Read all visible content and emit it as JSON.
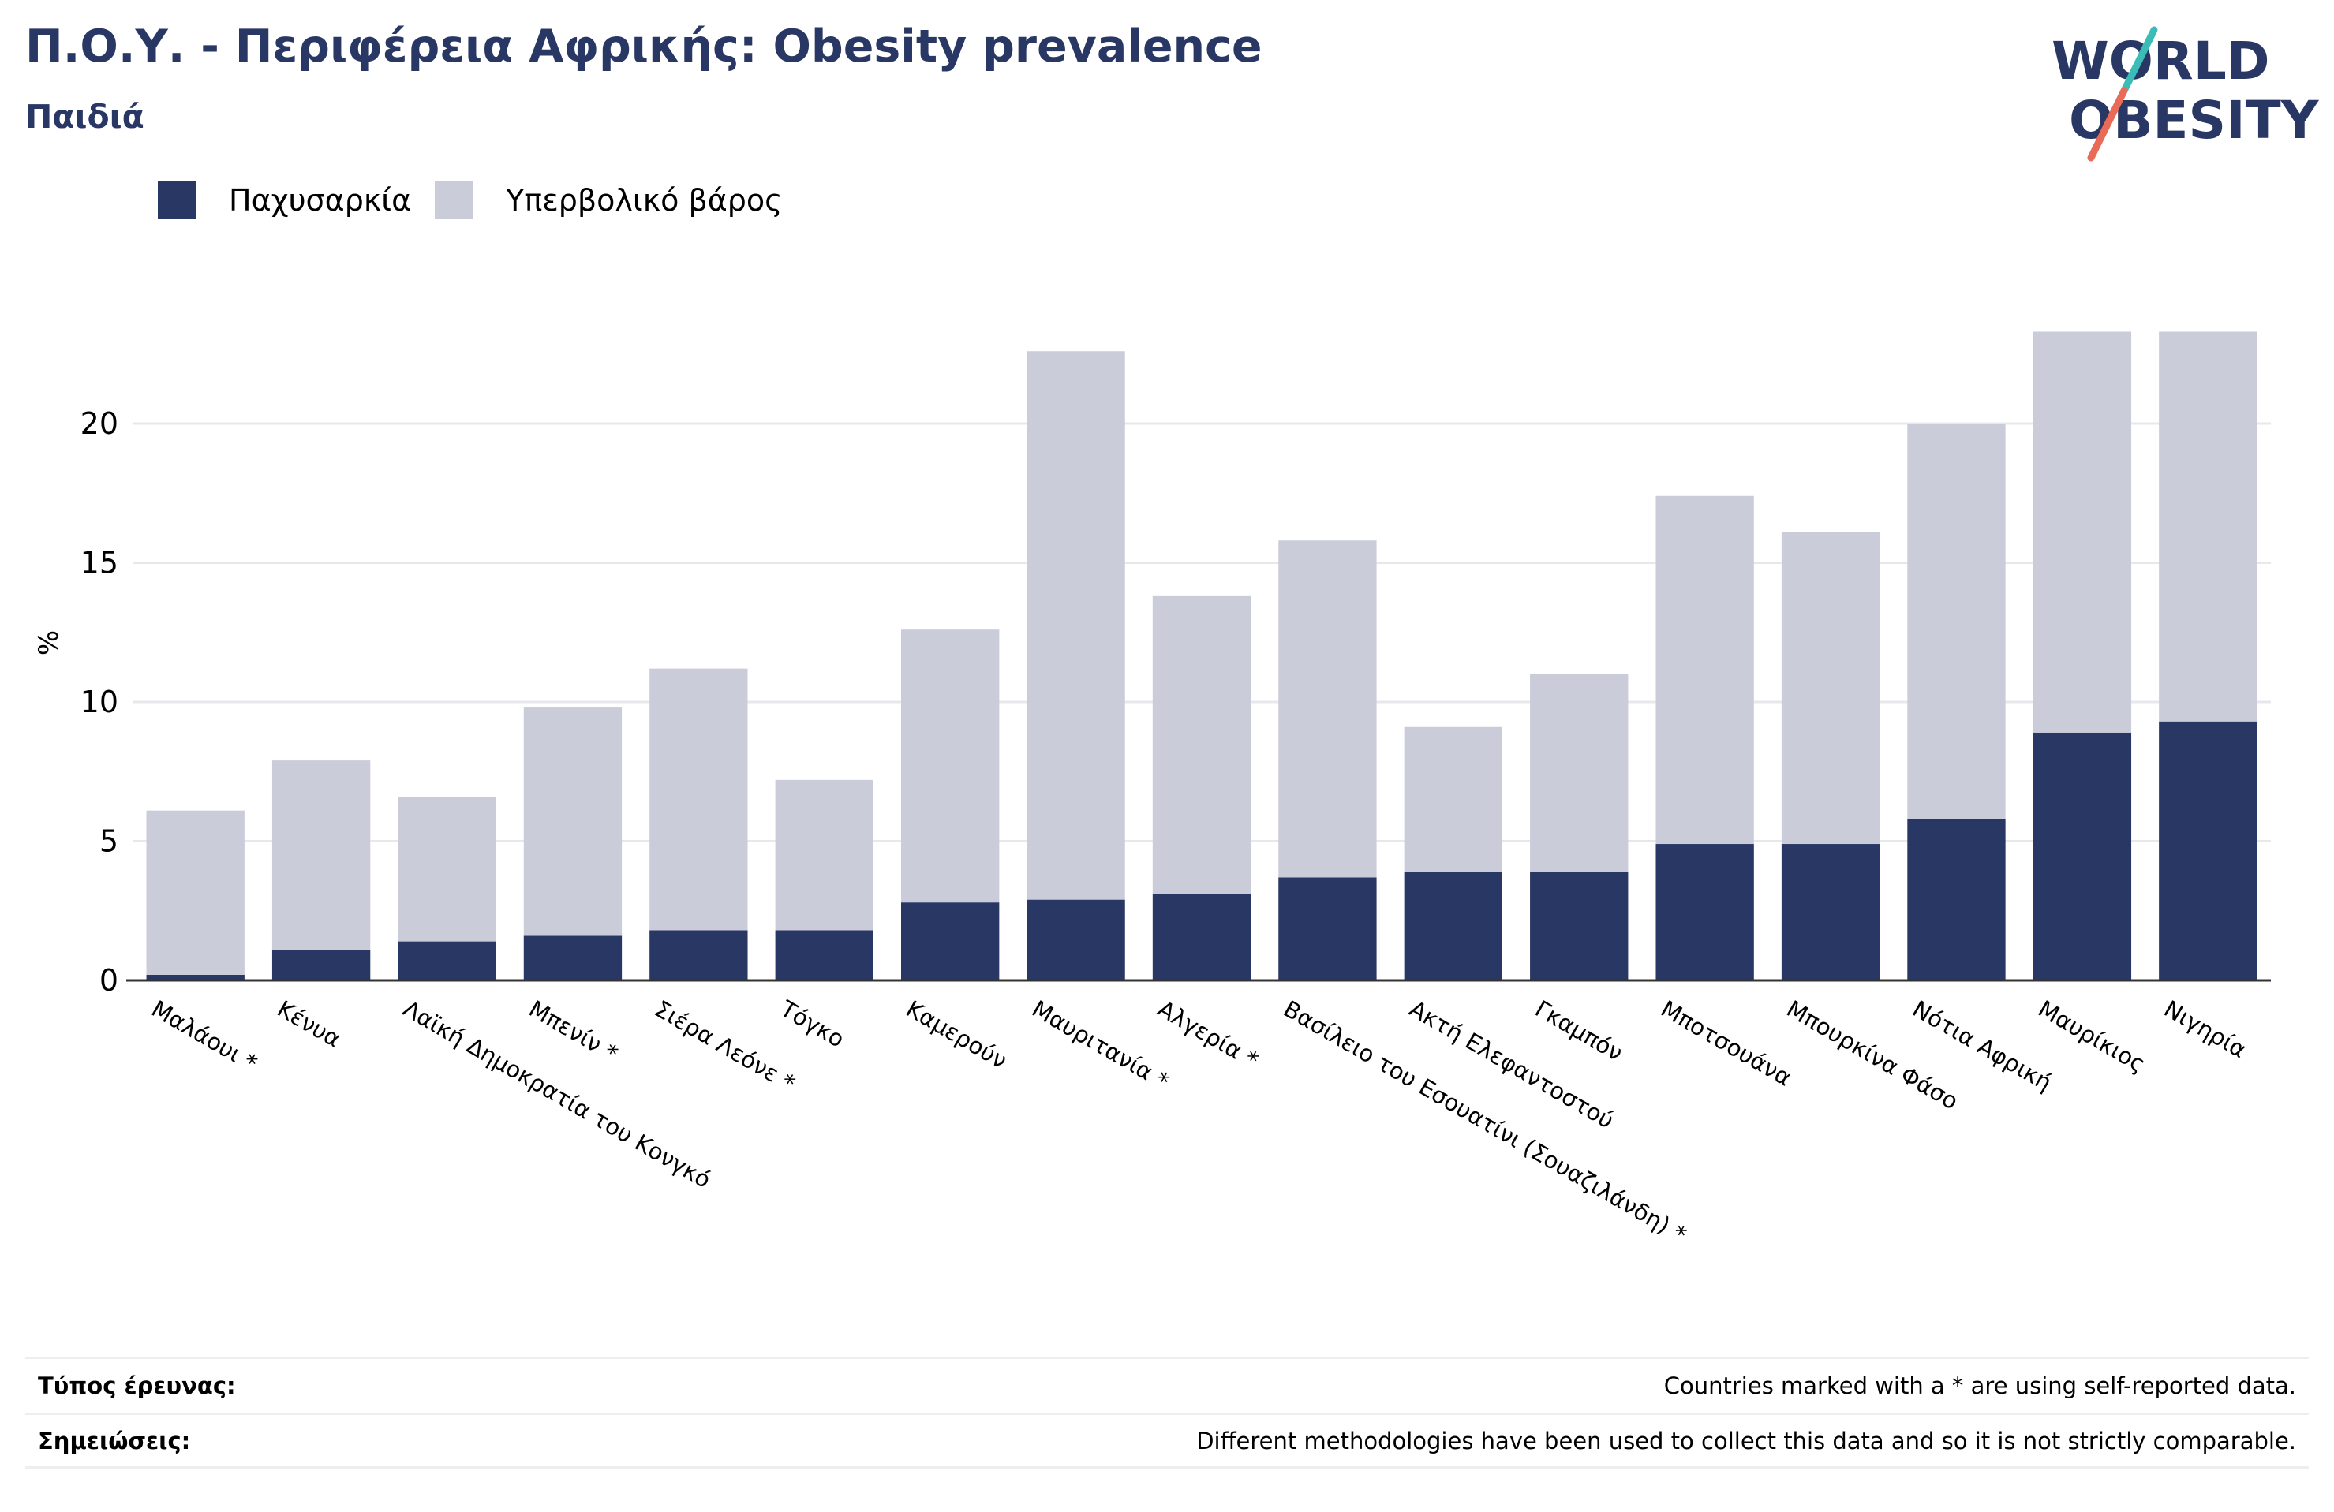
{
  "header": {
    "title": "Π.Ο.Υ. - Περιφέρεια Αφρικής: Obesity prevalence",
    "subtitle": "Παιδιά"
  },
  "logo": {
    "line1": "WORLD",
    "line2": "OBESITY"
  },
  "colors": {
    "navy": "#283764",
    "light": "#cbccd9",
    "grid": "#e8e8ec",
    "logo_teal": "#3bbcb6",
    "logo_coral": "#ea6a58"
  },
  "chart_data": {
    "type": "bar",
    "stacked": true,
    "ylabel": "%",
    "ylim": [
      0,
      25
    ],
    "yticks": [
      0,
      5,
      10,
      15,
      20
    ],
    "grid": true,
    "legend_position": "top-left",
    "categories": [
      "Μαλάουι *",
      "Κένυα",
      "Λαϊκή Δημοκρατία του Κονγκό",
      "Μπενίν *",
      "Σιέρα Λεόνε *",
      "Τόγκο",
      "Καμερούν",
      "Μαυριτανία *",
      "Αλγερία *",
      "Βασίλειο του Εσουατίνι (Σουαζιλάνδη) *",
      "Ακτή Ελεφαντοστού",
      "Γκαμπόν",
      "Μποτσουάνα",
      "Μπουρκίνα Φάσο",
      "Νότια Αφρική",
      "Μαυρίκιος",
      "Νιγηρία"
    ],
    "series": [
      {
        "name": "Παχυσαρκία",
        "color": "#283764",
        "values": [
          0.2,
          1.1,
          1.4,
          1.6,
          1.8,
          1.8,
          2.8,
          2.9,
          3.1,
          3.7,
          3.9,
          3.9,
          4.9,
          4.9,
          5.8,
          8.9,
          9.3
        ]
      },
      {
        "name": "Υπερβολικό βάρος",
        "color": "#cbccd9",
        "values": [
          5.9,
          6.8,
          5.2,
          8.2,
          9.4,
          5.4,
          9.8,
          19.7,
          10.7,
          12.1,
          5.2,
          7.1,
          12.5,
          11.2,
          14.2,
          14.4,
          14.0
        ]
      }
    ]
  },
  "footer": {
    "survey_label": "Τύπος έρευνας:",
    "survey_text": "Countries marked with a * are using self-reported data.",
    "notes_label": "Σημειώσεις:",
    "notes_text": "Different methodologies have been used to collect this data and so it is not strictly comparable."
  }
}
